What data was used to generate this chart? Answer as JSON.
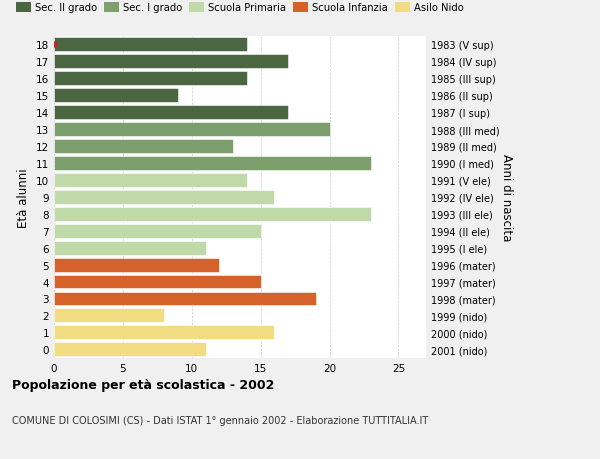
{
  "ages": [
    18,
    17,
    16,
    15,
    14,
    13,
    12,
    11,
    10,
    9,
    8,
    7,
    6,
    5,
    4,
    3,
    2,
    1,
    0
  ],
  "years": [
    "1983 (V sup)",
    "1984 (IV sup)",
    "1985 (III sup)",
    "1986 (II sup)",
    "1987 (I sup)",
    "1988 (III med)",
    "1989 (II med)",
    "1990 (I med)",
    "1991 (V ele)",
    "1992 (IV ele)",
    "1993 (III ele)",
    "1994 (II ele)",
    "1995 (I ele)",
    "1996 (mater)",
    "1997 (mater)",
    "1998 (mater)",
    "1999 (nido)",
    "2000 (nido)",
    "2001 (nido)"
  ],
  "values": [
    14,
    17,
    14,
    9,
    17,
    20,
    13,
    23,
    14,
    16,
    23,
    15,
    11,
    12,
    15,
    19,
    8,
    16,
    11
  ],
  "colors": [
    "#4a6741",
    "#4a6741",
    "#4a6741",
    "#4a6741",
    "#4a6741",
    "#7d9f6e",
    "#7d9f6e",
    "#7d9f6e",
    "#c0d9a8",
    "#c0d9a8",
    "#c0d9a8",
    "#c0d9a8",
    "#c0d9a8",
    "#d4622a",
    "#d4622a",
    "#d4622a",
    "#f2dc82",
    "#f2dc82",
    "#f2dc82"
  ],
  "legend_labels": [
    "Sec. II grado",
    "Sec. I grado",
    "Scuola Primaria",
    "Scuola Infanzia",
    "Asilo Nido"
  ],
  "legend_colors": [
    "#4a6741",
    "#7d9f6e",
    "#c0d9a8",
    "#d4622a",
    "#f2dc82"
  ],
  "title_bold": "Popolazione per età scolastica - 2002",
  "subtitle": "COMUNE DI COLOSIMI (CS) - Dati ISTAT 1° gennaio 2002 - Elaborazione TUTTITALIA.IT",
  "ylabel": "Età alunni",
  "ylabel_right": "Anni di nascita",
  "xlim": [
    0,
    27
  ],
  "background_color": "#f0f0f0",
  "bar_background": "#ffffff",
  "dot_color": "#cc2222",
  "dot_age": 18
}
